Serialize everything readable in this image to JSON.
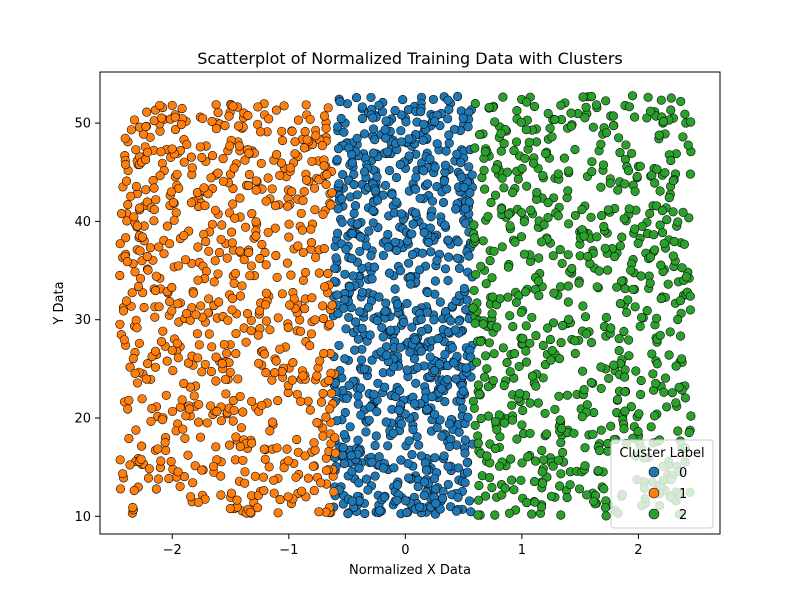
{
  "chart_data": {
    "type": "scatter",
    "title": "Scatterplot of Normalized Training Data with Clusters",
    "xlabel": "Normalized X Data",
    "ylabel": "Y Data",
    "xlim": [
      -2.62,
      2.7
    ],
    "ylim": [
      8.2,
      55.2
    ],
    "x_ticks": [
      -2,
      -1,
      0,
      1,
      2
    ],
    "x_tick_labels": [
      "−2",
      "−1",
      "0",
      "1",
      "2"
    ],
    "y_ticks": [
      10,
      20,
      30,
      40,
      50
    ],
    "y_tick_labels": [
      "10",
      "20",
      "30",
      "40",
      "50"
    ],
    "grid": false,
    "legend": {
      "title": "Cluster Label",
      "placement": "lower-right",
      "entries": [
        "0",
        "1",
        "2"
      ]
    },
    "series": [
      {
        "name": "0",
        "color": "#1f77b4",
        "x_range": [
          -0.62,
          0.58
        ],
        "y_range": [
          10.2,
          52.8
        ],
        "approx_count": 900,
        "sample_points": [
          [
            -0.5,
            48.0
          ],
          [
            -0.3,
            35.2
          ],
          [
            0.0,
            50.5
          ],
          [
            0.2,
            27.4
          ],
          [
            0.4,
            19.8
          ],
          [
            -0.1,
            13.0
          ],
          [
            0.1,
            45.2
          ],
          [
            0.5,
            40.1
          ],
          [
            -0.55,
            22.5
          ],
          [
            0.3,
            31.8
          ]
        ]
      },
      {
        "name": "1",
        "color": "#ff7f0e",
        "x_range": [
          -2.45,
          -0.6
        ],
        "y_range": [
          10.2,
          52.0
        ],
        "approx_count": 750,
        "sample_points": [
          [
            -2.45,
            34.5
          ],
          [
            -2.4,
            27.4
          ],
          [
            -2.0,
            51.8
          ],
          [
            -1.8,
            21.2
          ],
          [
            -1.5,
            44.8
          ],
          [
            -1.2,
            16.8
          ],
          [
            -1.0,
            38.4
          ],
          [
            -0.8,
            29.8
          ],
          [
            -0.7,
            48.4
          ],
          [
            -1.3,
            11.4
          ]
        ]
      },
      {
        "name": "2",
        "color": "#2ca02c",
        "x_range": [
          0.58,
          2.45
        ],
        "y_range": [
          10.0,
          52.8
        ],
        "approx_count": 750,
        "sample_points": [
          [
            0.6,
            52.0
          ],
          [
            0.8,
            44.8
          ],
          [
            1.0,
            27.5
          ],
          [
            1.2,
            18.2
          ],
          [
            1.5,
            36.5
          ],
          [
            1.8,
            24.8
          ],
          [
            2.0,
            45.6
          ],
          [
            2.3,
            50.5
          ],
          [
            2.45,
            20.2
          ],
          [
            2.45,
            47.1
          ]
        ]
      }
    ]
  }
}
